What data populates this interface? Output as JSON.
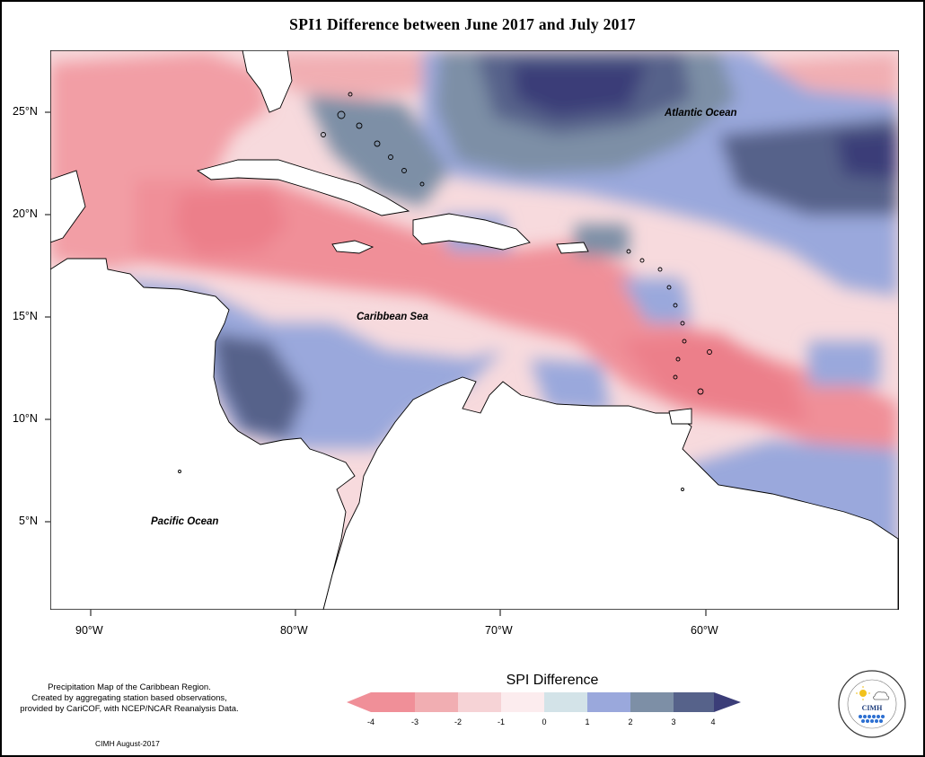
{
  "title": "SPI1 Difference between June 2017 and July 2017",
  "map": {
    "lat_ticks": [
      "25°N",
      "20°N",
      "15°N",
      "10°N",
      "5°N"
    ],
    "lon_ticks": [
      "90°W",
      "80°W",
      "70°W",
      "60°W"
    ],
    "labels": {
      "atlantic": "Atlantic Ocean",
      "caribbean": "Caribbean Sea",
      "pacific": "Pacific Ocean"
    }
  },
  "legend": {
    "title": "SPI Difference",
    "ticks": [
      "-4",
      "-3",
      "-2",
      "-1",
      "0",
      "1",
      "2",
      "3",
      "4"
    ],
    "colors": [
      "#f08f98",
      "#f1aeb2",
      "#f6d3d6",
      "#fcecee",
      "#d3e3e8",
      "#9aa8dc",
      "#7d8fa6",
      "#56628a",
      "#3b3d78"
    ]
  },
  "note": {
    "lines": [
      "Precipitation Map of the Caribbean Region.",
      "Created by aggregating station based observations,",
      "provided by CariCOF, with NCEP/NCAR Reanalysis Data."
    ],
    "credit": "CIMH August-2017"
  },
  "logo": {
    "text": "CIMH"
  }
}
